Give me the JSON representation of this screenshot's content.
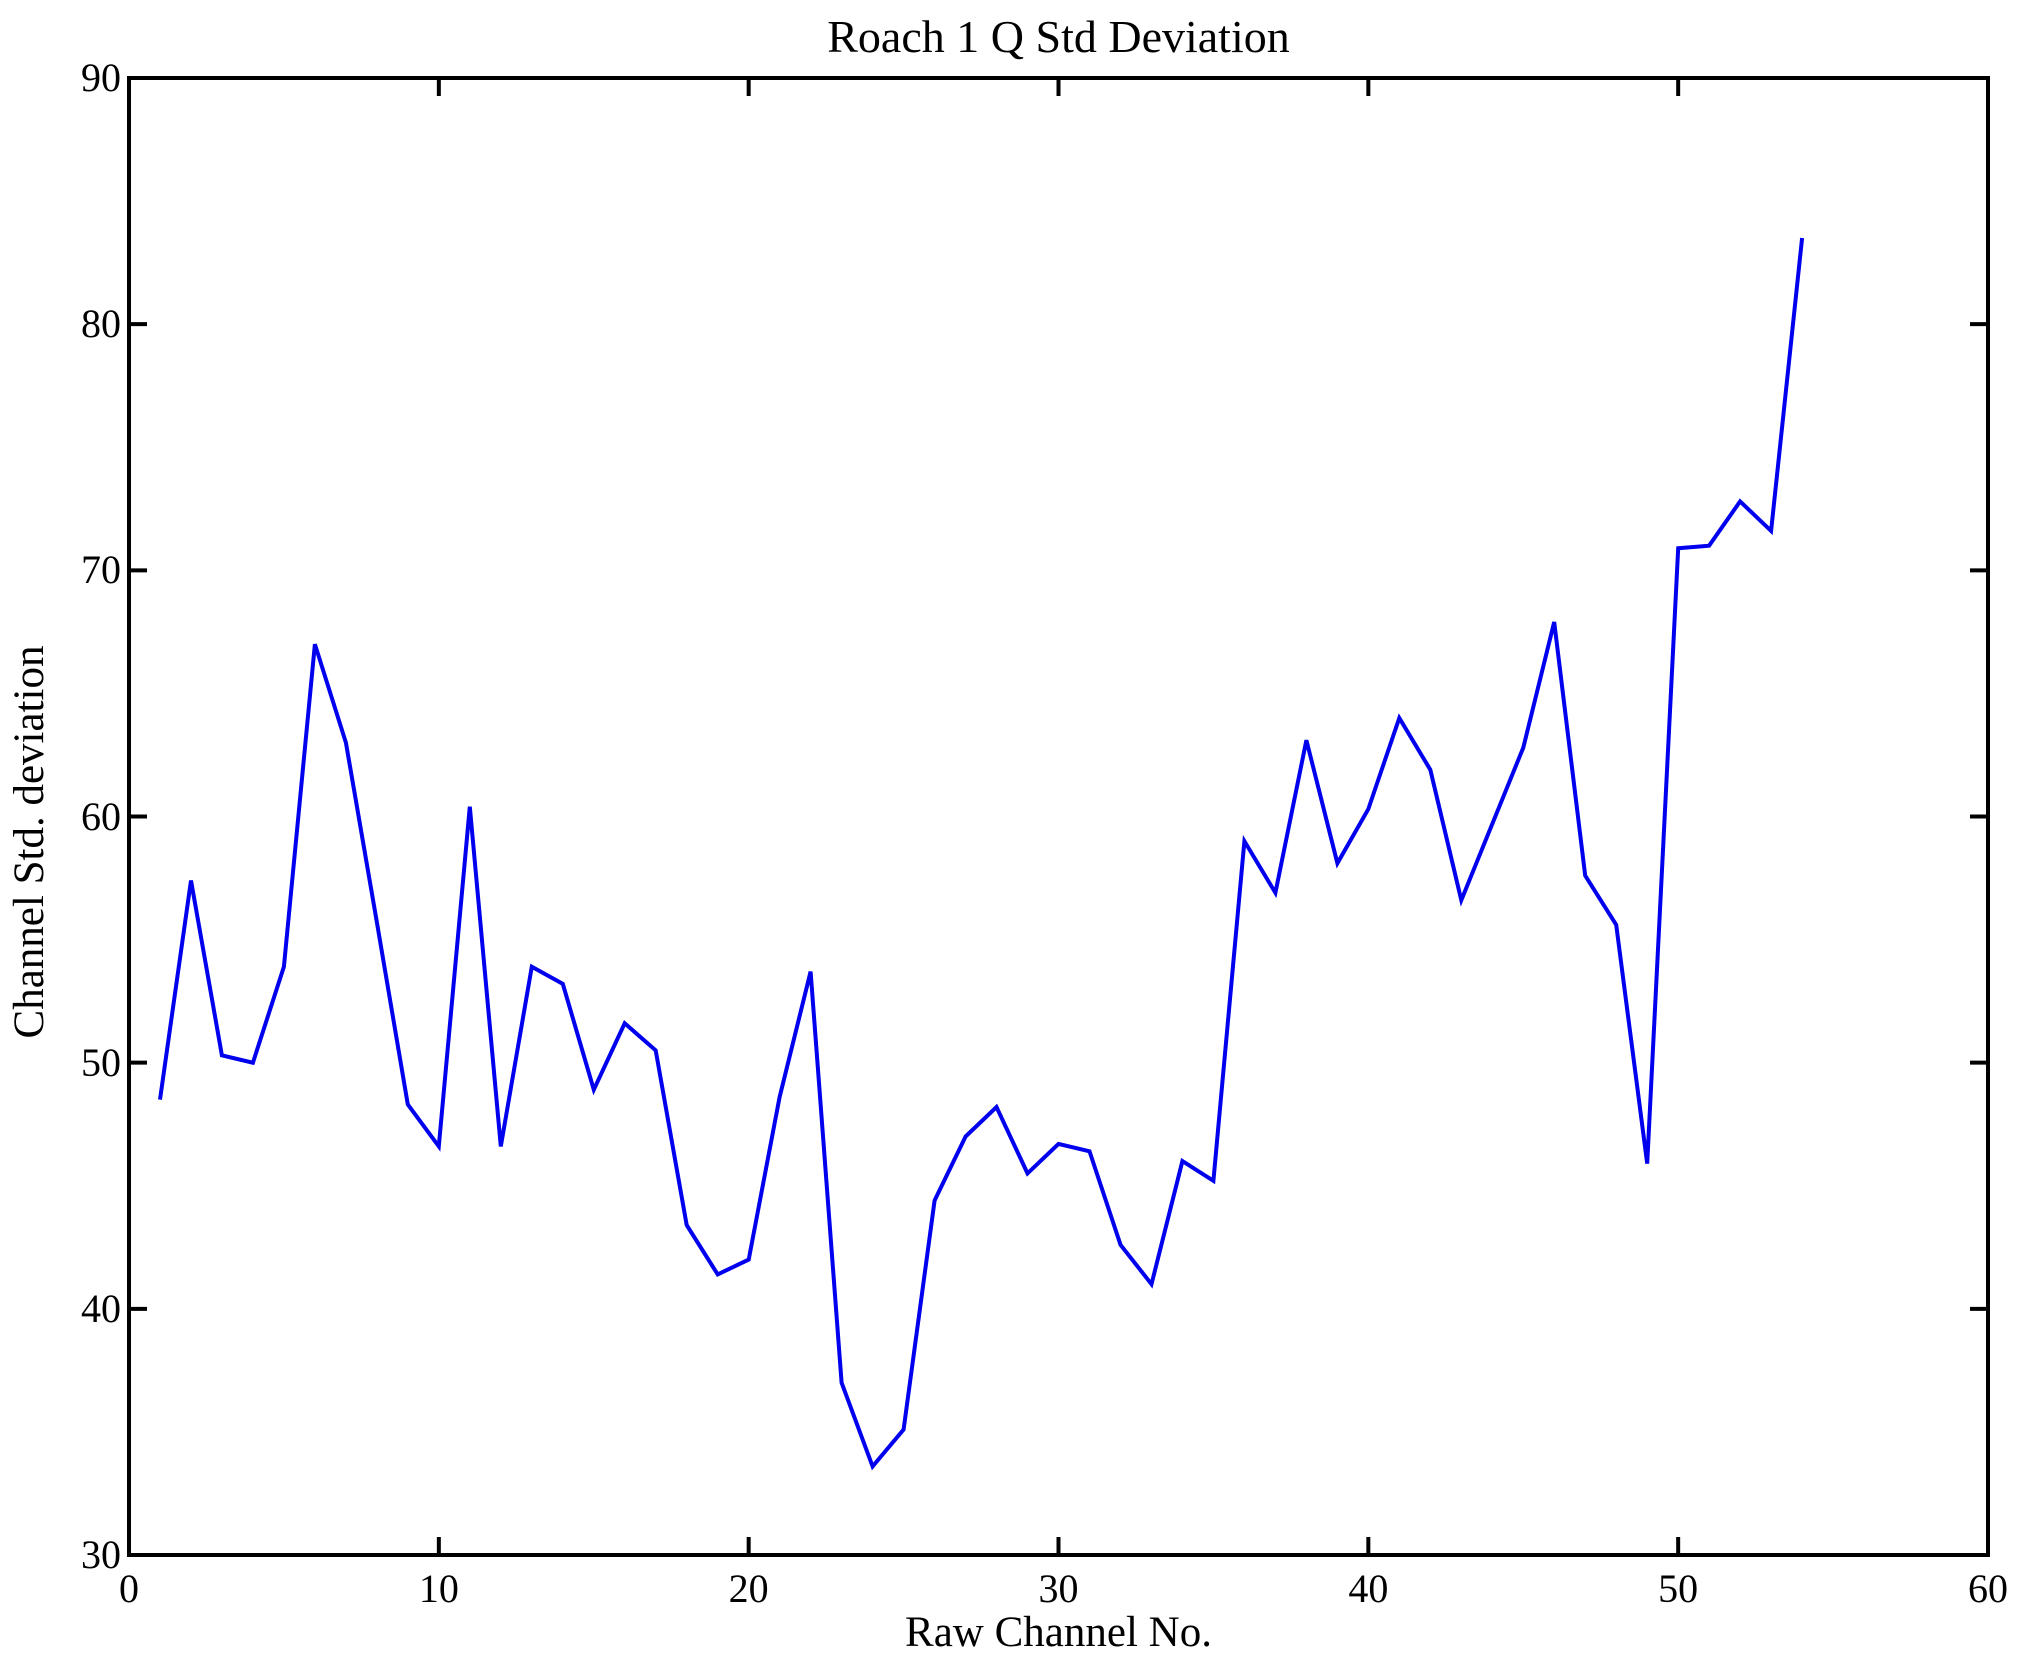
{
  "page": {
    "background": "#ffffff",
    "frame_color": "#000000"
  },
  "chart_data": {
    "type": "line",
    "title": "Roach 1 Q Std Deviation",
    "xlabel": "Raw Channel No.",
    "ylabel": "Channel Std. deviation",
    "xlim": [
      0,
      60
    ],
    "ylim": [
      30,
      90
    ],
    "xticks": [
      0,
      10,
      20,
      30,
      40,
      50,
      60
    ],
    "yticks": [
      30,
      40,
      50,
      60,
      70,
      80,
      90
    ],
    "grid": false,
    "line_color": "#0000EE",
    "series": [
      {
        "name": "Channel Std deviation vs Raw Channel No",
        "x": [
          1,
          2,
          3,
          4,
          5,
          6,
          7,
          8,
          9,
          10,
          11,
          12,
          13,
          14,
          15,
          16,
          17,
          18,
          19,
          20,
          21,
          22,
          23,
          24,
          25,
          26,
          27,
          28,
          29,
          30,
          31,
          32,
          33,
          34,
          35,
          36,
          37,
          38,
          39,
          40,
          41,
          42,
          43,
          44,
          45,
          46,
          47,
          48,
          49,
          50,
          51,
          52,
          53,
          54
        ],
        "values": [
          48.5,
          57.4,
          50.3,
          50.0,
          53.9,
          67.0,
          63.0,
          55.7,
          48.3,
          46.6,
          60.4,
          46.6,
          53.9,
          53.2,
          48.9,
          51.6,
          50.5,
          43.4,
          41.4,
          42.0,
          48.6,
          53.7,
          37.0,
          33.6,
          35.1,
          44.4,
          47.0,
          48.2,
          45.5,
          46.7,
          46.4,
          42.6,
          41.0,
          46.0,
          45.2,
          59.0,
          56.9,
          63.1,
          58.1,
          60.3,
          64.0,
          61.9,
          56.6,
          59.7,
          62.8,
          67.9,
          57.6,
          55.6,
          45.9,
          70.9,
          71.0,
          72.8,
          71.6,
          83.5
        ]
      }
    ]
  }
}
